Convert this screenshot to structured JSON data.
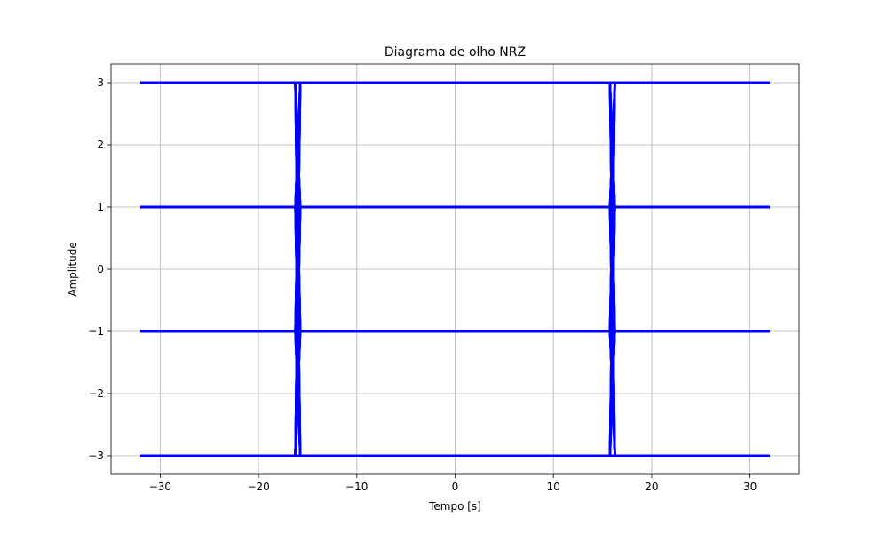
{
  "chart_data": {
    "type": "line",
    "title": "Diagrama de olho NRZ",
    "xlabel": "Tempo [s]",
    "ylabel": "Amplitude",
    "xlim": [
      -35,
      35
    ],
    "ylim": [
      -3.3,
      3.3
    ],
    "xticks": [
      -30,
      -20,
      -10,
      0,
      10,
      20,
      30
    ],
    "xtick_labels": [
      "−30",
      "−20",
      "−10",
      "0",
      "10",
      "20",
      "30"
    ],
    "yticks": [
      -3,
      -2,
      -1,
      0,
      1,
      2,
      3
    ],
    "ytick_labels": [
      "−3",
      "−2",
      "−1",
      "0",
      "1",
      "2",
      "3"
    ],
    "grid": true,
    "color": "#0000ff",
    "levels": [
      -3,
      -1,
      1,
      3
    ],
    "x_range": [
      -32,
      32
    ],
    "transitions": [
      -16,
      16
    ],
    "transition_width": 0.5
  }
}
